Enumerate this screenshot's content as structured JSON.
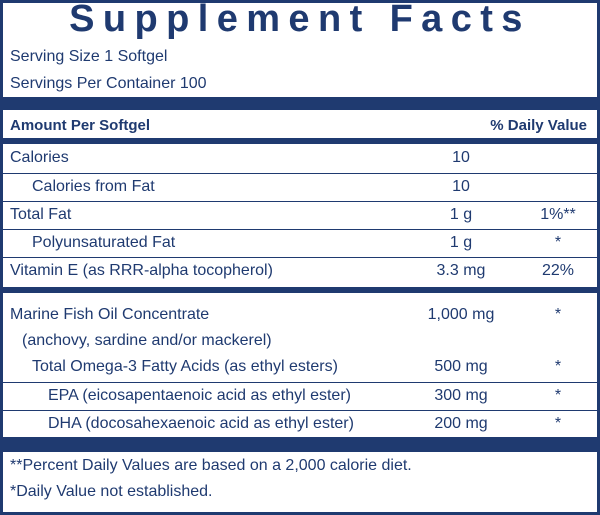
{
  "title": "Supplement Facts",
  "serving_size": "Serving Size 1 Softgel",
  "servings_per_container": "Servings Per Container 100",
  "header": {
    "amount": "Amount Per Softgel",
    "daily_value": "% Daily Value"
  },
  "rows": [
    {
      "name": "Calories",
      "amount": "10",
      "dv": null,
      "indent": 0
    },
    {
      "name": "Calories from Fat",
      "amount": "10",
      "dv": null,
      "indent": 1
    },
    {
      "name": "Total Fat",
      "amount": "1 g",
      "dv": "1%**",
      "indent": 0
    },
    {
      "name": "Polyunsaturated Fat",
      "amount": "1 g",
      "dv": "*",
      "indent": 1
    },
    {
      "name": "Vitamin E (as RRR-alpha tocopherol)",
      "amount": "3.3 mg",
      "dv": "22%",
      "indent": 0
    },
    {
      "name": "Marine Fish Oil Concentrate",
      "note": "(anchovy, sardine and/or mackerel)",
      "amount": "1,000 mg",
      "dv": "*",
      "indent": 0
    },
    {
      "name": "Total Omega-3 Fatty Acids (as ethyl esters)",
      "amount": "500 mg",
      "dv": "*",
      "indent": 1
    },
    {
      "name": "EPA (eicosapentaenoic acid as ethyl ester)",
      "amount": "300 mg",
      "dv": "*",
      "indent": 2
    },
    {
      "name": "DHA (docosahexaenoic acid as ethyl ester)",
      "amount": "200 mg",
      "dv": "*",
      "indent": 2
    }
  ],
  "footnotes": [
    "**Percent Daily Values are based on a 2,000 calorie diet.",
    "*Daily Value not established."
  ]
}
